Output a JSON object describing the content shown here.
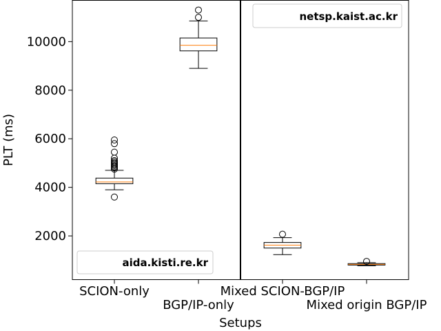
{
  "chart_data": {
    "type": "box",
    "xlabel": "Setups",
    "ylabel": "PLT (ms)",
    "ylim": [
      200,
      11700
    ],
    "yticks": [
      2000,
      4000,
      6000,
      8000,
      10000
    ],
    "categories": [
      "SCION-only",
      "BGP/IP-only",
      "Mixed SCION-BGP/IP",
      "Mixed origin BGP/IP"
    ],
    "panel_separator_after": "BGP/IP-only",
    "panel_labels": [
      {
        "text": "aida.kisti.re.kr",
        "placement": "bottom-right of left panel"
      },
      {
        "text": "netsp.kaist.ac.kr",
        "placement": "top-right of right panel"
      }
    ],
    "boxes": [
      {
        "category": "SCION-only",
        "whisker_low": 3900,
        "q1": 4150,
        "median": 4220,
        "q3": 4380,
        "whisker_high": 4700,
        "outliers": [
          3600,
          4750,
          4800,
          4850,
          4900,
          4950,
          5000,
          5050,
          5100,
          5200,
          5450,
          5800,
          5950
        ]
      },
      {
        "category": "BGP/IP-only",
        "whisker_low": 8900,
        "q1": 9620,
        "median": 9850,
        "q3": 10150,
        "whisker_high": 10850,
        "outliers": [
          11000,
          11300
        ]
      },
      {
        "category": "Mixed SCION-BGP/IP",
        "whisker_low": 1230,
        "q1": 1500,
        "median": 1620,
        "q3": 1730,
        "whisker_high": 1930,
        "outliers": [
          2070
        ]
      },
      {
        "category": "Mixed origin BGP/IP",
        "whisker_low": 770,
        "q1": 800,
        "median": 830,
        "q3": 860,
        "whisker_high": 900,
        "outliers": [
          950
        ]
      }
    ],
    "colors": {
      "box": "#000000",
      "median": "#ff7f0e",
      "separator": "#000000"
    }
  }
}
